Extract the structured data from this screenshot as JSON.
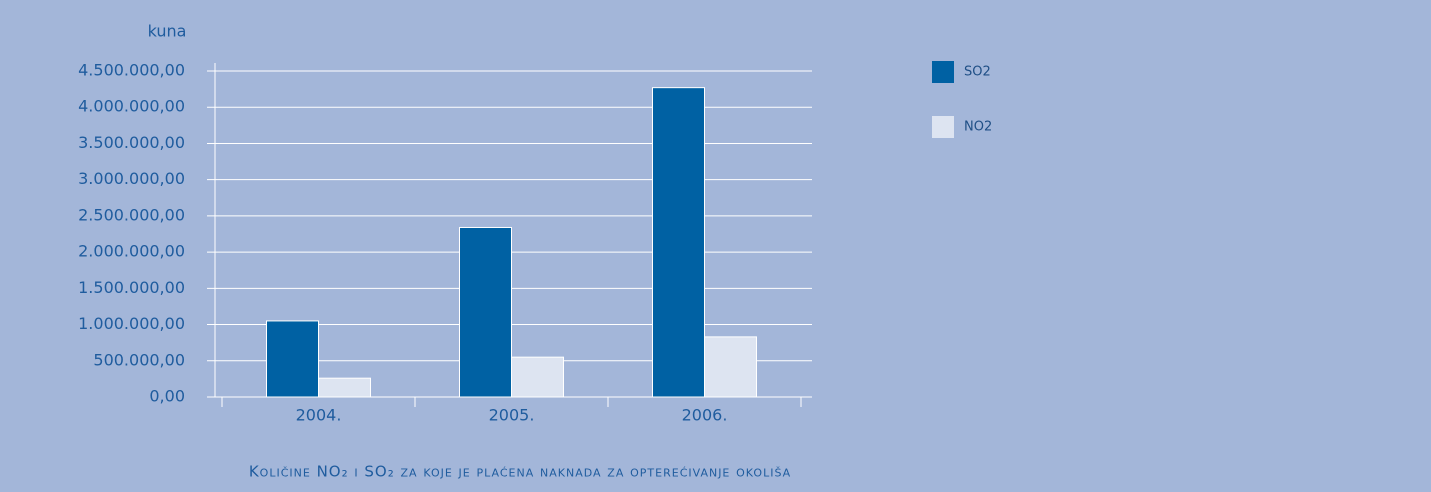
{
  "chart_data": {
    "type": "bar",
    "title": "Količine NO₂ i SO₂ za koje je plaćena naknada za opterećivanje okoliša",
    "y_label": "kuna",
    "categories": [
      "2004.",
      "2005.",
      "2006."
    ],
    "series": [
      {
        "name": "SO2",
        "color": "#0061a3",
        "values": [
          1050000,
          2340000,
          4270000
        ]
      },
      {
        "name": "NO2",
        "color": "#dde4f1",
        "values": [
          260000,
          550000,
          830000
        ]
      }
    ],
    "ylim": [
      0,
      4500000
    ],
    "yticks": [
      {
        "value": 0,
        "label": "0,00"
      },
      {
        "value": 500000,
        "label": "500.000,00"
      },
      {
        "value": 1000000,
        "label": "1.000.000,00"
      },
      {
        "value": 1500000,
        "label": "1.500.000,00"
      },
      {
        "value": 2000000,
        "label": "2.000.000,00"
      },
      {
        "value": 2500000,
        "label": "2.500.000,00"
      },
      {
        "value": 3000000,
        "label": "3.000.000,00"
      },
      {
        "value": 3500000,
        "label": "3.500.000,00"
      },
      {
        "value": 4000000,
        "label": "4.000.000,00"
      },
      {
        "value": 4500000,
        "label": "4.500.000,00"
      }
    ],
    "grid": true
  }
}
